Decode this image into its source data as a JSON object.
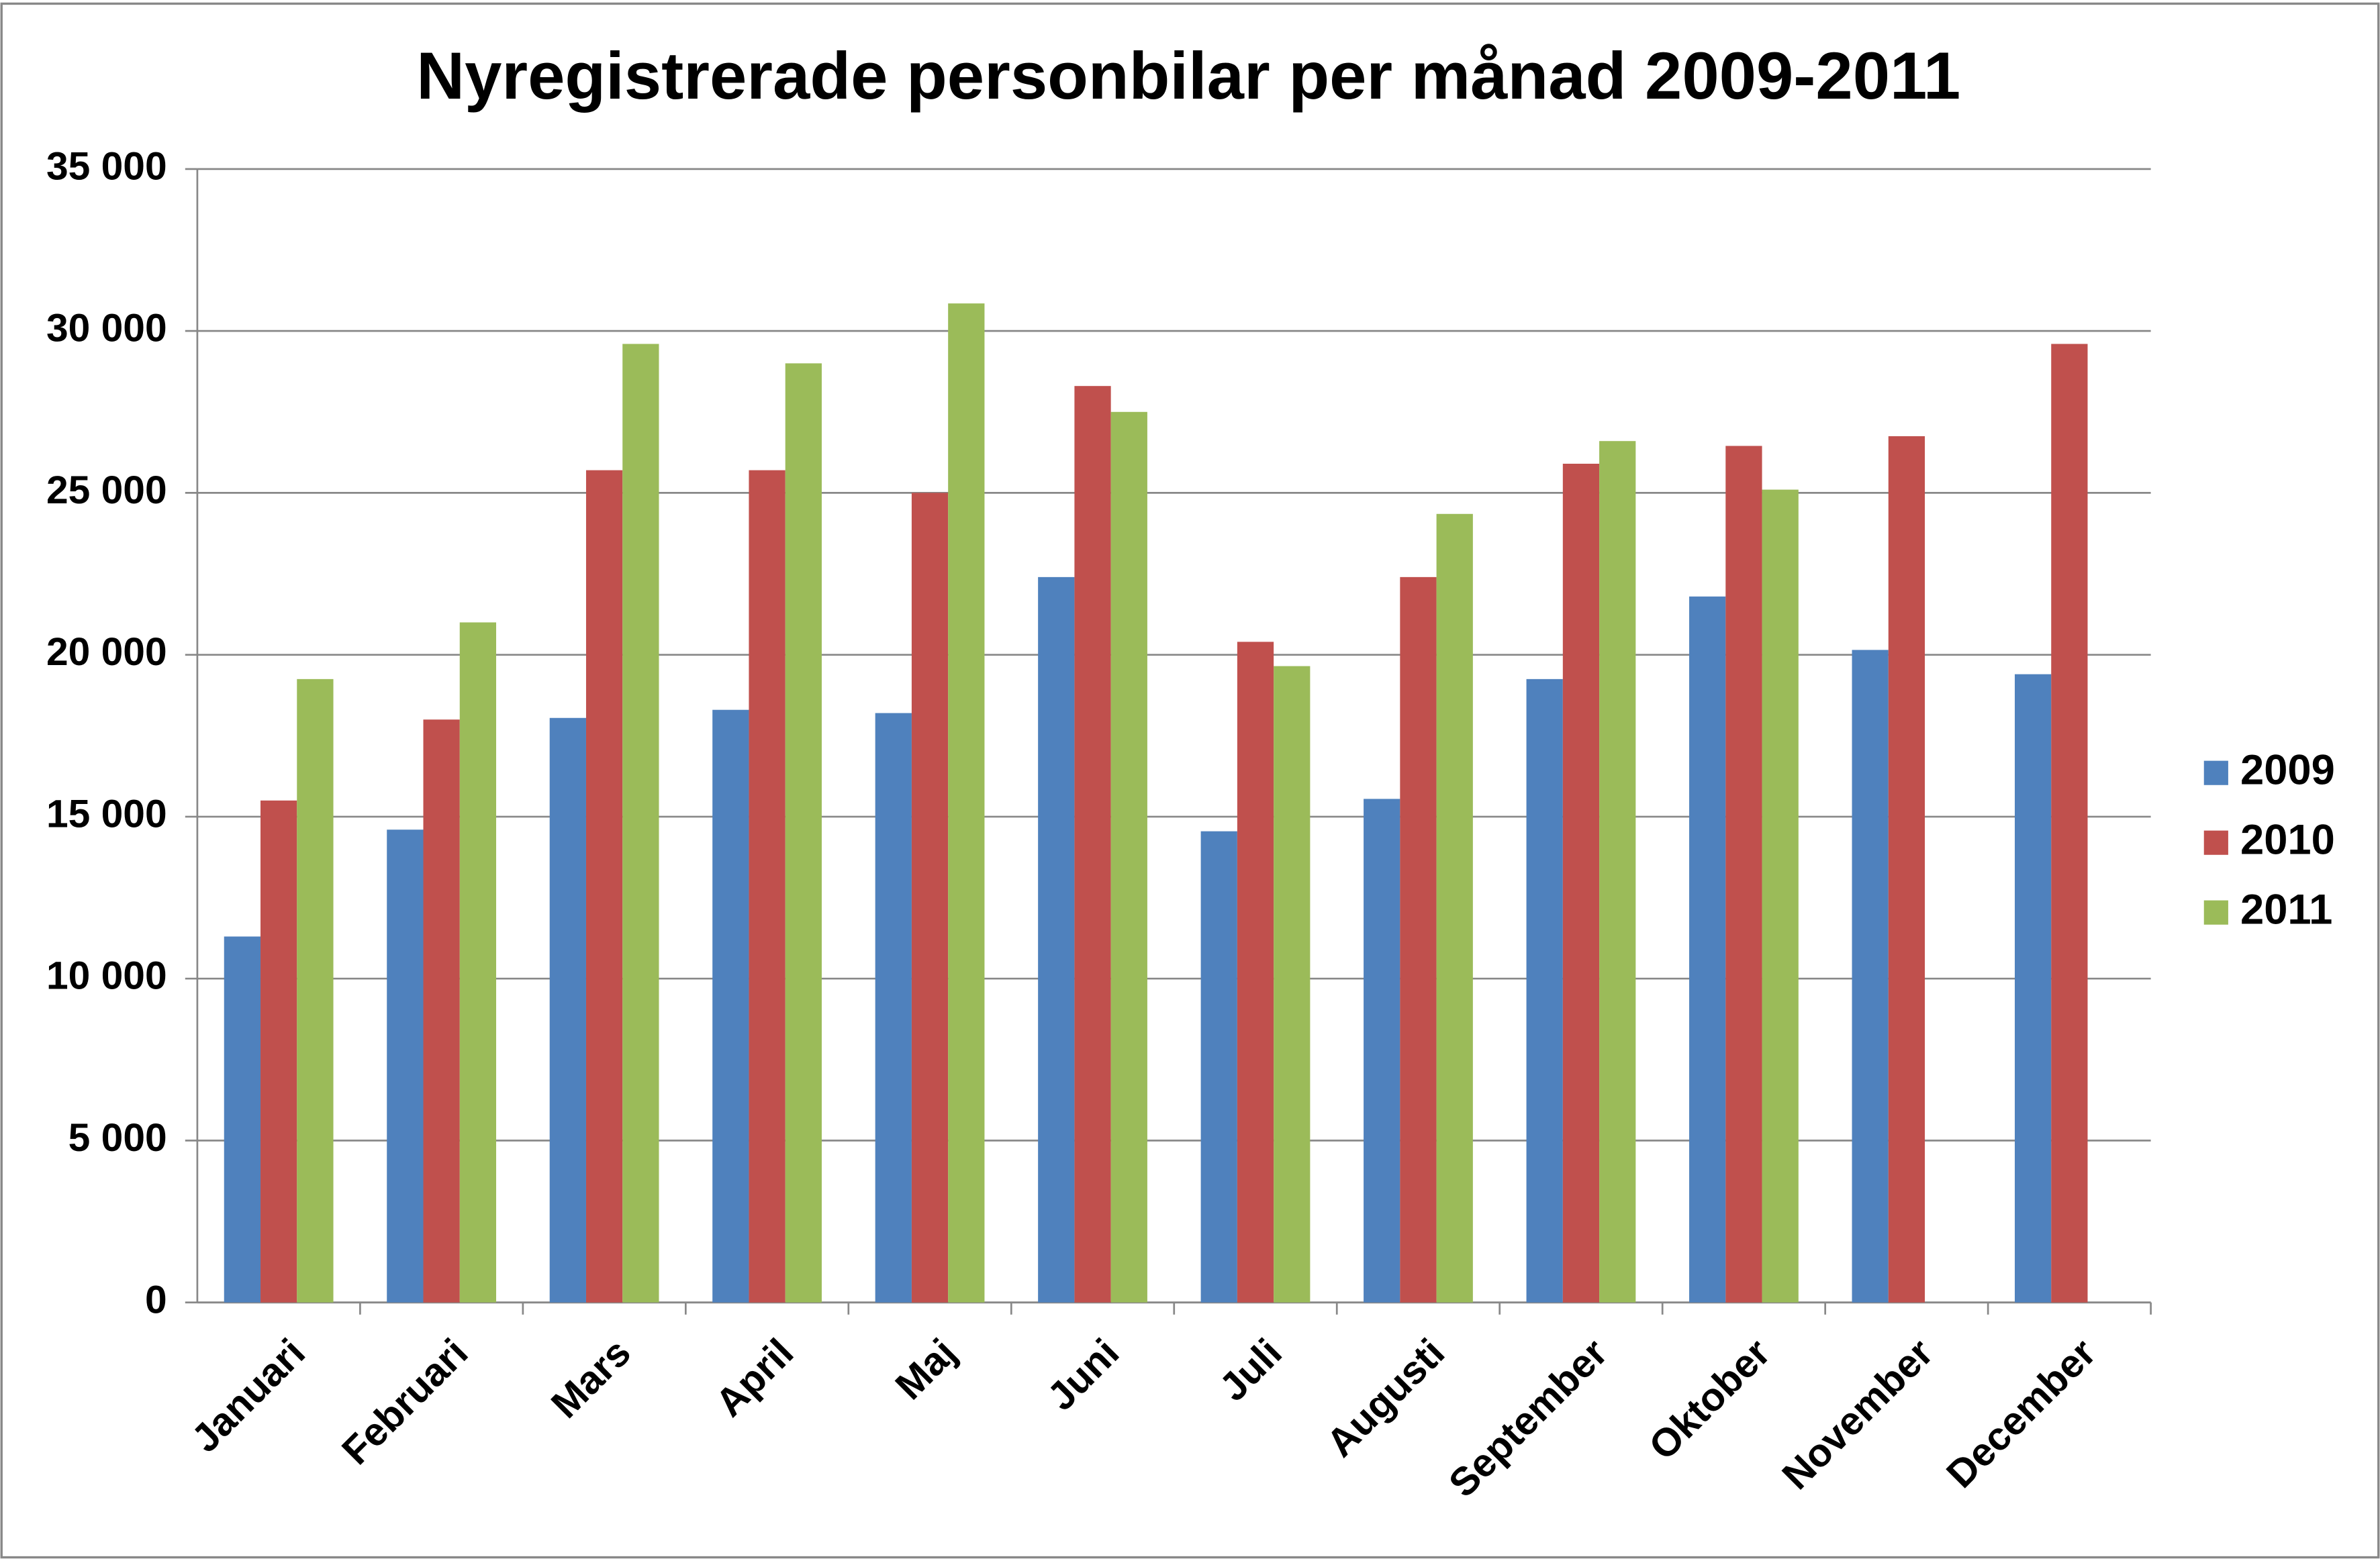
{
  "chart_data": {
    "type": "bar",
    "title": "Nyregistrerade personbilar per månad 2009-2011",
    "categories": [
      "Januari",
      "Februari",
      "Mars",
      "April",
      "Maj",
      "Juni",
      "Juli",
      "Augusti",
      "September",
      "Oktober",
      "November",
      "December"
    ],
    "series": [
      {
        "name": "2009",
        "color": "#4f81bd",
        "values": [
          11300,
          14600,
          18050,
          18300,
          18200,
          22400,
          14550,
          15550,
          19250,
          21800,
          20150,
          19400
        ]
      },
      {
        "name": "2010",
        "color": "#c0504d",
        "values": [
          15500,
          18000,
          25700,
          25700,
          25000,
          28300,
          20400,
          22400,
          25900,
          26450,
          26750,
          29600
        ]
      },
      {
        "name": "2011",
        "color": "#9bbb59",
        "values": [
          19250,
          21000,
          29600,
          29000,
          30850,
          27500,
          19650,
          24350,
          26600,
          25100,
          null,
          null
        ]
      }
    ],
    "ylim": [
      0,
      35000
    ],
    "yticks": [
      0,
      {
        "value": 5000,
        "label": "5 000"
      },
      {
        "value": 10000,
        "label": "10 000"
      },
      {
        "value": 15000,
        "label": "15 000"
      },
      {
        "value": 20000,
        "label": "20 000"
      },
      {
        "value": 25000,
        "label": "25 000"
      },
      {
        "value": 30000,
        "label": "30 000"
      },
      {
        "value": 35000,
        "label": "35 000"
      }
    ],
    "grid": true,
    "legend": "right"
  }
}
